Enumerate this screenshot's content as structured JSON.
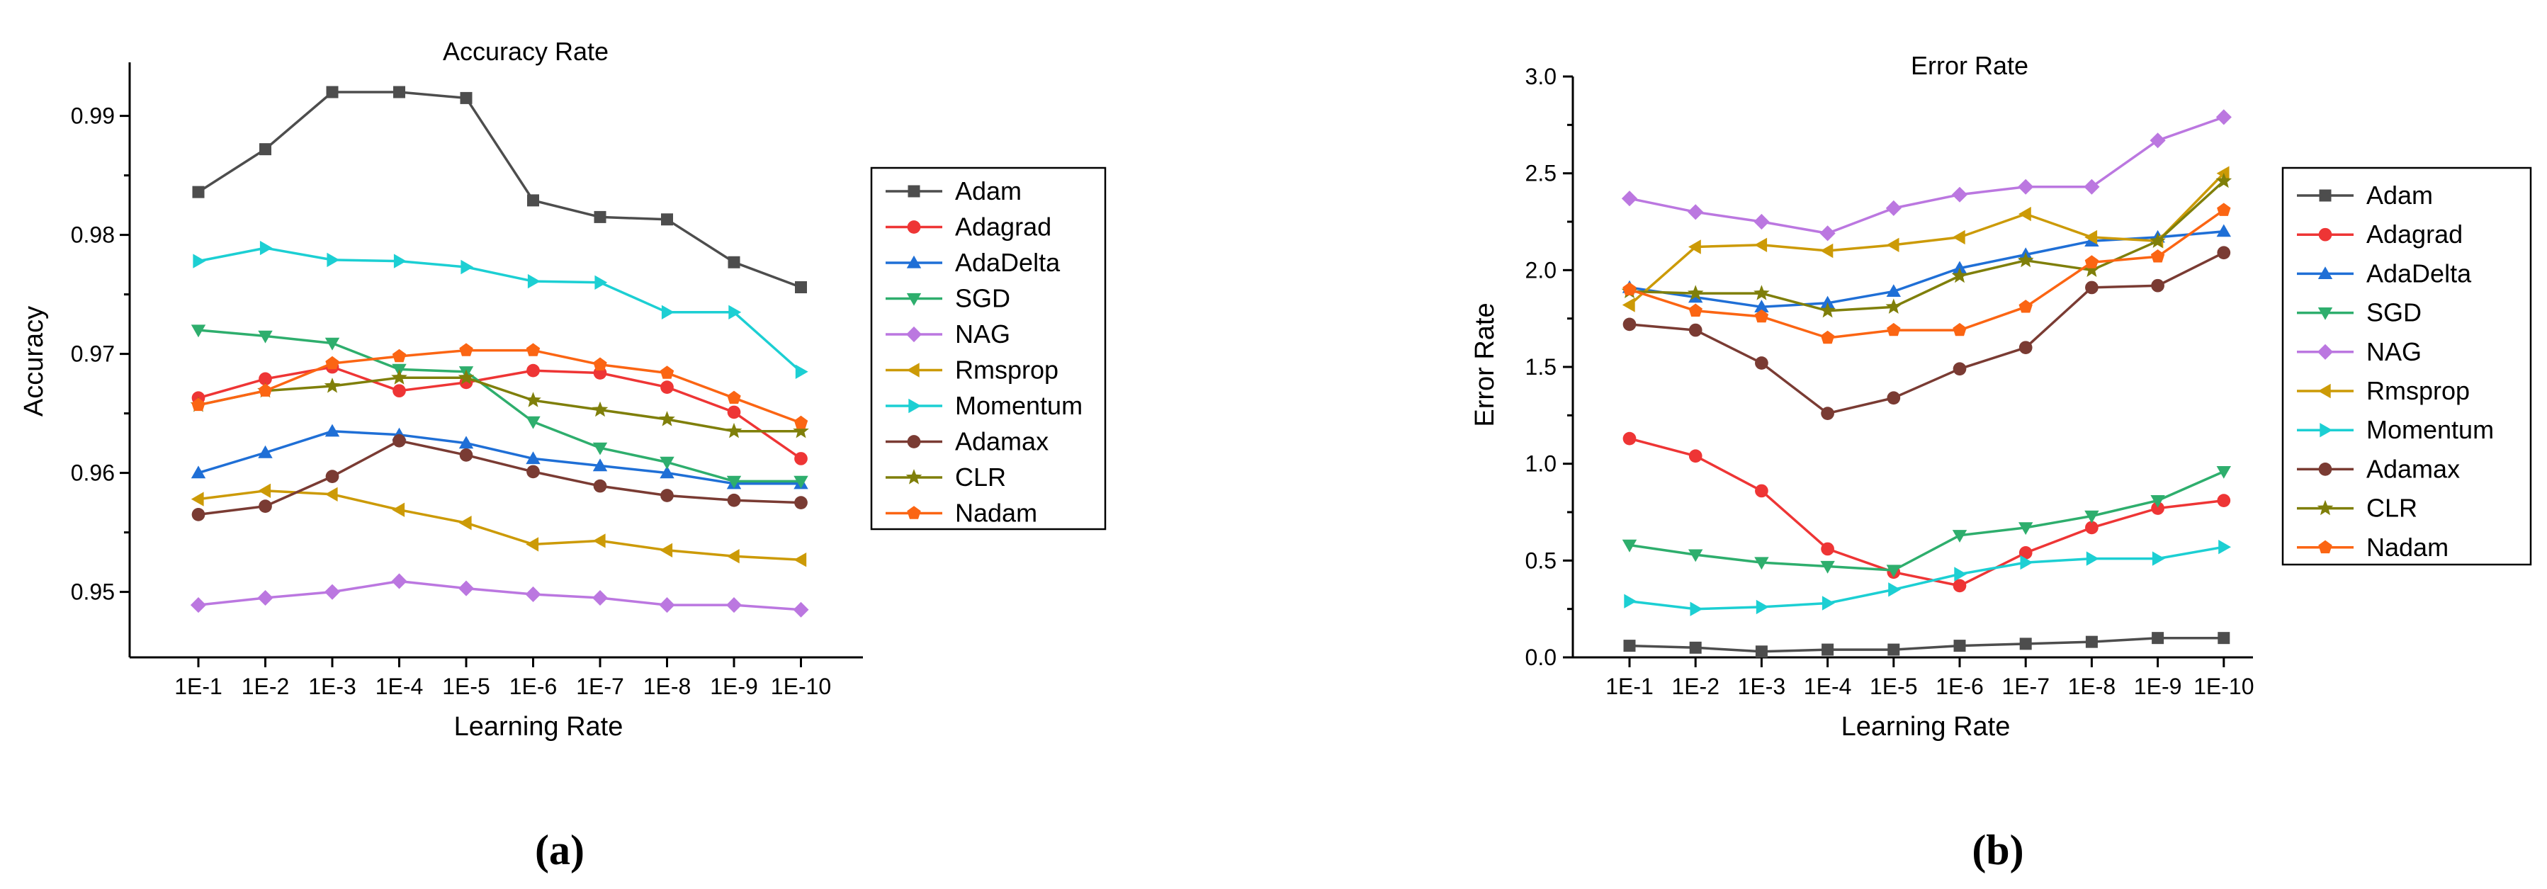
{
  "chart_data": [
    {
      "type": "line",
      "panel_label": "(a)",
      "title": "Accuracy Rate",
      "xlabel": "Learning Rate",
      "ylabel": "Accuracy",
      "categories": [
        "1E-1",
        "1E-2",
        "1E-3",
        "1E-4",
        "1E-5",
        "1E-6",
        "1E-7",
        "1E-8",
        "1E-9",
        "1E-10"
      ],
      "ylim": [
        0.9445,
        0.9945
      ],
      "yticks": [
        0.95,
        0.96,
        0.97,
        0.98,
        0.99
      ],
      "ytick_labels": [
        "0.95",
        "0.96",
        "0.97",
        "0.98",
        "0.99"
      ],
      "legend_position": "right",
      "series": [
        {
          "name": "Adam",
          "color": "#4d4d4d",
          "marker": "square",
          "values": [
            0.9836,
            0.9872,
            0.992,
            0.992,
            0.9915,
            0.9829,
            0.9815,
            0.9813,
            0.9777,
            0.9756
          ]
        },
        {
          "name": "Adagrad",
          "color": "#ee3535",
          "marker": "circle",
          "values": [
            0.9663,
            0.9679,
            0.9689,
            0.9669,
            0.9676,
            0.9686,
            0.9684,
            0.9672,
            0.9651,
            0.9612
          ]
        },
        {
          "name": "AdaDelta",
          "color": "#1f6fd6",
          "marker": "triangle-up",
          "values": [
            0.96,
            0.9617,
            0.9635,
            0.9632,
            0.9625,
            0.9612,
            0.9606,
            0.96,
            0.9591,
            0.9591
          ]
        },
        {
          "name": "SGD",
          "color": "#2eae6d",
          "marker": "triangle-down",
          "values": [
            0.972,
            0.9715,
            0.9709,
            0.9687,
            0.9685,
            0.9643,
            0.9621,
            0.9609,
            0.9593,
            0.9593
          ]
        },
        {
          "name": "NAG",
          "color": "#bb77e0",
          "marker": "diamond",
          "values": [
            0.9489,
            0.9495,
            0.95,
            0.9509,
            0.9503,
            0.9498,
            0.9495,
            0.9489,
            0.9489,
            0.9485
          ]
        },
        {
          "name": "Rmsprop",
          "color": "#cc9a06",
          "marker": "triangle-left",
          "values": [
            0.9578,
            0.9585,
            0.9582,
            0.9569,
            0.9558,
            0.954,
            0.9543,
            0.9535,
            0.953,
            0.9527
          ]
        },
        {
          "name": "Momentum",
          "color": "#1ccfd3",
          "marker": "triangle-right",
          "values": [
            0.9778,
            0.9789,
            0.9779,
            0.9778,
            0.9773,
            0.9761,
            0.976,
            0.9735,
            0.9735,
            0.9685
          ]
        },
        {
          "name": "Adamax",
          "color": "#7a3b33",
          "marker": "circle",
          "values": [
            0.9565,
            0.9572,
            0.9597,
            0.9627,
            0.9615,
            0.9601,
            0.9589,
            0.9581,
            0.9577,
            0.9575
          ]
        },
        {
          "name": "CLR",
          "color": "#7f7f0a",
          "marker": "star",
          "values": [
            0.9657,
            0.9669,
            0.9673,
            0.968,
            0.968,
            0.9661,
            0.9653,
            0.9645,
            0.9635,
            0.9635
          ]
        },
        {
          "name": "Nadam",
          "color": "#fb6513",
          "marker": "pentagon",
          "values": [
            0.9657,
            0.9669,
            0.9692,
            0.9698,
            0.9703,
            0.9703,
            0.9691,
            0.9684,
            0.9663,
            0.9642
          ]
        }
      ]
    },
    {
      "type": "line",
      "panel_label": "(b)",
      "title": "Error Rate",
      "xlabel": "Learning Rate",
      "ylabel": "Error Rate",
      "categories": [
        "1E-1",
        "1E-2",
        "1E-3",
        "1E-4",
        "1E-5",
        "1E-6",
        "1E-7",
        "1E-8",
        "1E-9",
        "1E-10"
      ],
      "ylim": [
        0,
        3.0
      ],
      "yticks": [
        0,
        0.5,
        1.0,
        1.5,
        2.0,
        2.5,
        3.0
      ],
      "ytick_labels": [
        "0.0",
        "0.5",
        "1.0",
        "1.5",
        "2.0",
        "2.5",
        "3.0"
      ],
      "legend_position": "right",
      "series": [
        {
          "name": "Adam",
          "color": "#4d4d4d",
          "marker": "square",
          "values": [
            0.06,
            0.05,
            0.03,
            0.04,
            0.04,
            0.06,
            0.07,
            0.08,
            0.1,
            0.1
          ]
        },
        {
          "name": "Adagrad",
          "color": "#ee3535",
          "marker": "circle",
          "values": [
            1.13,
            1.04,
            0.86,
            0.56,
            0.44,
            0.37,
            0.54,
            0.67,
            0.77,
            0.81
          ]
        },
        {
          "name": "AdaDelta",
          "color": "#1f6fd6",
          "marker": "triangle-up",
          "values": [
            1.91,
            1.86,
            1.81,
            1.83,
            1.89,
            2.01,
            2.08,
            2.15,
            2.17,
            2.2
          ]
        },
        {
          "name": "SGD",
          "color": "#2eae6d",
          "marker": "triangle-down",
          "values": [
            0.58,
            0.53,
            0.49,
            0.47,
            0.45,
            0.63,
            0.67,
            0.73,
            0.81,
            0.96
          ]
        },
        {
          "name": "NAG",
          "color": "#bb77e0",
          "marker": "diamond",
          "values": [
            2.37,
            2.3,
            2.25,
            2.19,
            2.32,
            2.39,
            2.43,
            2.43,
            2.67,
            2.79
          ]
        },
        {
          "name": "Rmsprop",
          "color": "#cc9a06",
          "marker": "triangle-left",
          "values": [
            1.82,
            2.12,
            2.13,
            2.1,
            2.13,
            2.17,
            2.29,
            2.17,
            2.15,
            2.5
          ]
        },
        {
          "name": "Momentum",
          "color": "#1ccfd3",
          "marker": "triangle-right",
          "values": [
            0.29,
            0.25,
            0.26,
            0.28,
            0.35,
            0.43,
            0.49,
            0.51,
            0.51,
            0.57
          ]
        },
        {
          "name": "Adamax",
          "color": "#7a3b33",
          "marker": "circle",
          "values": [
            1.72,
            1.69,
            1.52,
            1.26,
            1.34,
            1.49,
            1.6,
            1.91,
            1.92,
            2.09
          ]
        },
        {
          "name": "CLR",
          "color": "#7f7f0a",
          "marker": "star",
          "values": [
            1.89,
            1.88,
            1.88,
            1.79,
            1.81,
            1.97,
            2.05,
            2.0,
            2.15,
            2.46
          ]
        },
        {
          "name": "Nadam",
          "color": "#fb6513",
          "marker": "pentagon",
          "values": [
            1.9,
            1.79,
            1.76,
            1.65,
            1.69,
            1.69,
            1.81,
            2.04,
            2.07,
            2.31
          ]
        }
      ]
    }
  ]
}
